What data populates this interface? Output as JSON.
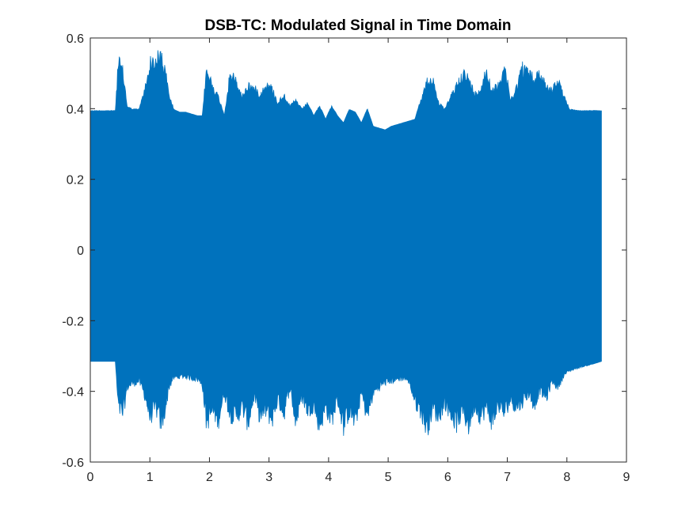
{
  "chart_data": {
    "type": "area",
    "title": "DSB-TC: Modulated Signal in Time Domain",
    "xlabel": "",
    "ylabel": "",
    "xlim": [
      0,
      9
    ],
    "ylim": [
      -0.6,
      0.6
    ],
    "xticks": [
      0,
      1,
      2,
      3,
      4,
      5,
      6,
      7,
      8,
      9
    ],
    "xtick_labels": [
      "0",
      "1",
      "2",
      "3",
      "4",
      "5",
      "6",
      "7",
      "8",
      "9"
    ],
    "yticks": [
      -0.6,
      -0.4,
      -0.2,
      0,
      0.2,
      0.4,
      0.6
    ],
    "ytick_labels": [
      "-0.6",
      "-0.4",
      "-0.2",
      "0",
      "0.2",
      "0.4",
      "0.6"
    ],
    "grid": false,
    "legend": "none",
    "series": [
      {
        "color": "#0072BD",
        "x": [
          0.0,
          0.42,
          0.47,
          0.55,
          0.62,
          0.7,
          0.82,
          0.92,
          1.0,
          1.1,
          1.2,
          1.28,
          1.32,
          1.4,
          1.5,
          1.6,
          1.7,
          1.8,
          1.88,
          1.95,
          2.05,
          2.15,
          2.25,
          2.35,
          2.45,
          2.55,
          2.65,
          2.75,
          2.85,
          2.95,
          3.05,
          3.15,
          3.25,
          3.35,
          3.45,
          3.55,
          3.65,
          3.75,
          3.85,
          3.95,
          4.05,
          4.15,
          4.25,
          4.35,
          4.45,
          4.55,
          4.65,
          4.75,
          4.85,
          4.95,
          5.05,
          5.15,
          5.25,
          5.35,
          5.45,
          5.55,
          5.65,
          5.75,
          5.85,
          5.95,
          6.05,
          6.15,
          6.25,
          6.35,
          6.45,
          6.55,
          6.65,
          6.75,
          6.85,
          6.95,
          7.05,
          7.15,
          7.25,
          7.35,
          7.45,
          7.55,
          7.65,
          7.75,
          7.85,
          7.95,
          8.05,
          8.2,
          8.4,
          8.58
        ],
        "upper": [
          0.395,
          0.395,
          0.56,
          0.52,
          0.41,
          0.4,
          0.4,
          0.47,
          0.55,
          0.56,
          0.58,
          0.5,
          0.45,
          0.4,
          0.39,
          0.39,
          0.385,
          0.38,
          0.38,
          0.53,
          0.48,
          0.44,
          0.38,
          0.52,
          0.49,
          0.44,
          0.48,
          0.47,
          0.45,
          0.48,
          0.47,
          0.42,
          0.45,
          0.41,
          0.43,
          0.4,
          0.42,
          0.38,
          0.41,
          0.37,
          0.41,
          0.38,
          0.36,
          0.4,
          0.39,
          0.36,
          0.4,
          0.35,
          0.345,
          0.34,
          0.35,
          0.355,
          0.36,
          0.365,
          0.37,
          0.43,
          0.49,
          0.5,
          0.42,
          0.4,
          0.44,
          0.48,
          0.52,
          0.5,
          0.45,
          0.47,
          0.53,
          0.46,
          0.48,
          0.55,
          0.43,
          0.47,
          0.54,
          0.52,
          0.5,
          0.52,
          0.48,
          0.46,
          0.5,
          0.44,
          0.4,
          0.395,
          0.395,
          0.395
        ],
        "lower": [
          -0.315,
          -0.315,
          -0.47,
          -0.49,
          -0.4,
          -0.39,
          -0.38,
          -0.43,
          -0.5,
          -0.47,
          -0.53,
          -0.45,
          -0.4,
          -0.37,
          -0.365,
          -0.365,
          -0.37,
          -0.375,
          -0.39,
          -0.52,
          -0.48,
          -0.51,
          -0.42,
          -0.49,
          -0.5,
          -0.47,
          -0.52,
          -0.43,
          -0.5,
          -0.48,
          -0.51,
          -0.44,
          -0.49,
          -0.4,
          -0.52,
          -0.43,
          -0.48,
          -0.46,
          -0.53,
          -0.47,
          -0.51,
          -0.44,
          -0.53,
          -0.48,
          -0.52,
          -0.42,
          -0.5,
          -0.42,
          -0.4,
          -0.385,
          -0.38,
          -0.375,
          -0.37,
          -0.38,
          -0.45,
          -0.48,
          -0.54,
          -0.47,
          -0.5,
          -0.45,
          -0.49,
          -0.52,
          -0.48,
          -0.53,
          -0.46,
          -0.5,
          -0.47,
          -0.52,
          -0.46,
          -0.49,
          -0.44,
          -0.47,
          -0.45,
          -0.42,
          -0.46,
          -0.41,
          -0.44,
          -0.38,
          -0.4,
          -0.36,
          -0.345,
          -0.335,
          -0.325,
          -0.315
        ]
      }
    ]
  }
}
